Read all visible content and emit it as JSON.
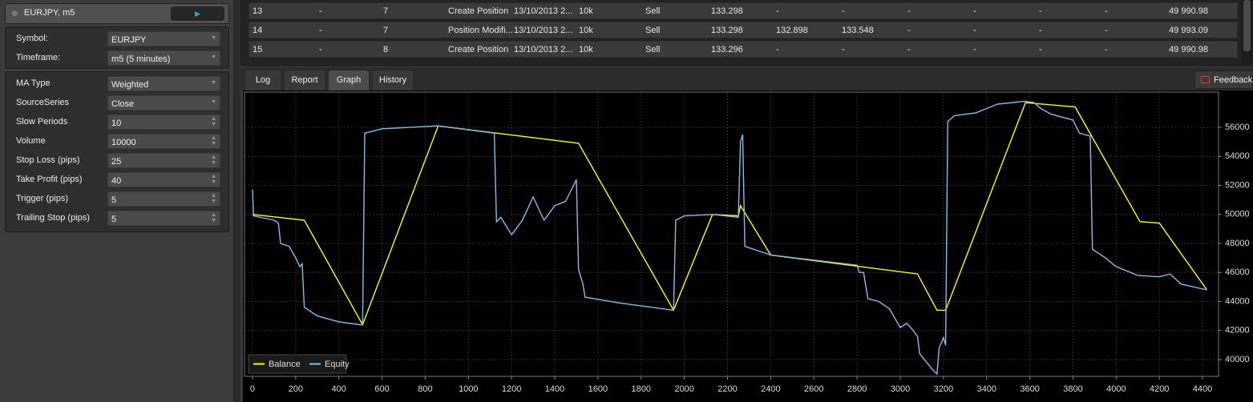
{
  "panel": {
    "title": "EURJPY, m5",
    "group1": [
      {
        "label": "Symbol:",
        "value": "EURJPY",
        "kind": "select"
      },
      {
        "label": "Timeframe:",
        "value": "m5 (5 minutes)",
        "kind": "select"
      }
    ],
    "group2": [
      {
        "label": "MA Type",
        "value": "Weighted",
        "kind": "select"
      },
      {
        "label": "SourceSeries",
        "value": "Close",
        "kind": "select"
      },
      {
        "label": "Slow Periods",
        "value": "10",
        "kind": "number"
      },
      {
        "label": "Volume",
        "value": "10000",
        "kind": "number"
      },
      {
        "label": "Stop Loss (pips)",
        "value": "25",
        "kind": "number"
      },
      {
        "label": "Take Profit (pips)",
        "value": "40",
        "kind": "number"
      },
      {
        "label": "Trigger (pips)",
        "value": "5",
        "kind": "number"
      },
      {
        "label": "Trailing Stop (pips)",
        "value": "5",
        "kind": "number"
      }
    ]
  },
  "table": {
    "rows": [
      [
        "13",
        "-",
        "7",
        "Create Position",
        "13/10/2013 2...",
        "10k",
        "Sell",
        "133.298",
        "-",
        "-",
        "-",
        "-",
        "-",
        "-",
        "49 990.98"
      ],
      [
        "14",
        "-",
        "7",
        "Position Modifi...",
        "13/10/2013 2...",
        "10k",
        "Sell",
        "133.298",
        "132.898",
        "133.548",
        "-",
        "-",
        "-",
        "-",
        "49 993.09"
      ],
      [
        "15",
        "-",
        "8",
        "Create Position",
        "13/10/2013 2...",
        "10k",
        "Sell",
        "133.296",
        "-",
        "-",
        "-",
        "-",
        "-",
        "-",
        "49 990.98"
      ]
    ]
  },
  "tabs": [
    "Log",
    "Report",
    "Graph",
    "History"
  ],
  "active_tab": 2,
  "feedback": "Feedback",
  "chart_data": {
    "type": "line",
    "grid": true,
    "legend": "lower left",
    "xlim": [
      -37,
      4474
    ],
    "ylim": [
      38841,
      58428
    ],
    "xticks": [
      0,
      200,
      400,
      600,
      800,
      1000,
      1200,
      1400,
      1600,
      1800,
      2000,
      2200,
      2400,
      2600,
      2800,
      3000,
      3200,
      3400,
      3600,
      3800,
      4000,
      4200,
      4400
    ],
    "yticks": [
      40000,
      42000,
      44000,
      46000,
      48000,
      50000,
      52000,
      54000,
      56000
    ],
    "series": [
      {
        "name": "Balance",
        "color": "#ffff00",
        "x": [
          0,
          240,
          510,
          860,
          1510,
          1950,
          2130,
          2250,
          2260,
          2400,
          3080,
          3170,
          3210,
          3580,
          3810,
          4110,
          4200,
          4420
        ],
        "values": [
          50000,
          49600,
          42400,
          56100,
          54900,
          43400,
          50000,
          49900,
          50600,
          47200,
          45900,
          43400,
          43400,
          57700,
          57400,
          49500,
          49400,
          44800
        ]
      },
      {
        "name": "Equity",
        "color": "#7fbfef",
        "x": [
          0,
          5,
          100,
          120,
          130,
          170,
          200,
          220,
          230,
          240,
          300,
          400,
          500,
          510,
          520,
          600,
          860,
          1120,
          1130,
          1150,
          1200,
          1250,
          1300,
          1350,
          1400,
          1450,
          1500,
          1510,
          1530,
          1540,
          1700,
          1900,
          1950,
          1960,
          2000,
          2130,
          2250,
          2260,
          2270,
          2280,
          2400,
          2800,
          2810,
          2830,
          2850,
          2900,
          2950,
          3000,
          3030,
          3060,
          3080,
          3090,
          3150,
          3170,
          3180,
          3200,
          3210,
          3220,
          3250,
          3350,
          3450,
          3580,
          3620,
          3650,
          3700,
          3800,
          3830,
          3880,
          3890,
          3950,
          4000,
          4100,
          4200,
          4250,
          4300,
          4420
        ],
        "values": [
          51700,
          49900,
          49600,
          49400,
          48000,
          47800,
          47000,
          46400,
          46600,
          43600,
          43000,
          42600,
          42400,
          42400,
          55600,
          55900,
          56100,
          55600,
          49500,
          49800,
          48600,
          49600,
          51200,
          49600,
          50600,
          50900,
          52400,
          46200,
          45200,
          44300,
          43900,
          43500,
          43400,
          49600,
          49900,
          50000,
          49800,
          55000,
          55500,
          47800,
          47200,
          46500,
          46000,
          46000,
          44200,
          44000,
          43500,
          42200,
          42500,
          42000,
          41600,
          40400,
          39300,
          39000,
          40800,
          41500,
          41000,
          56400,
          56800,
          57000,
          57600,
          57800,
          57700,
          57300,
          56900,
          56500,
          55600,
          55400,
          47600,
          47000,
          46400,
          45800,
          45700,
          45900,
          45200,
          44800
        ]
      }
    ]
  }
}
